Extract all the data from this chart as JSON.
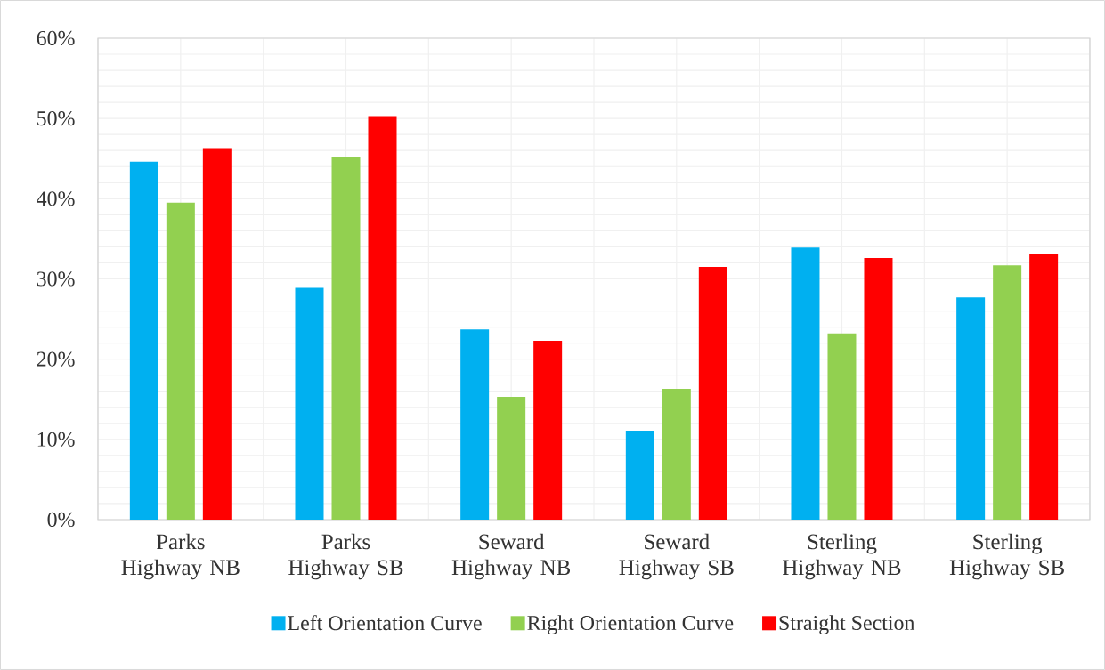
{
  "chart_data": {
    "type": "bar",
    "categories": [
      "Parks Highway NB",
      "Parks Highway SB",
      "Seward Highway NB",
      "Seward Highway SB",
      "Sterling Highway NB",
      "Sterling Highway SB"
    ],
    "series": [
      {
        "name": "Left Orientation Curve",
        "color": "#00b0f0",
        "values": [
          44.6,
          28.9,
          23.7,
          11.1,
          33.9,
          27.7
        ]
      },
      {
        "name": "Right Orientation Curve",
        "color": "#92d050",
        "values": [
          39.5,
          45.2,
          15.3,
          16.3,
          23.2,
          31.7
        ]
      },
      {
        "name": "Straight Section",
        "color": "#ff0000",
        "values": [
          46.3,
          50.3,
          22.3,
          31.5,
          32.6,
          33.1
        ]
      }
    ],
    "ylim": [
      0,
      60
    ],
    "yticks": [
      {
        "value": 0,
        "label": "0%"
      },
      {
        "value": 10,
        "label": "10%"
      },
      {
        "value": 20,
        "label": "20%"
      },
      {
        "value": 30,
        "label": "30%"
      },
      {
        "value": 40,
        "label": "40%"
      },
      {
        "value": 50,
        "label": "50%"
      },
      {
        "value": 60,
        "label": "60%"
      }
    ],
    "grid": true,
    "legend": "bottom"
  }
}
